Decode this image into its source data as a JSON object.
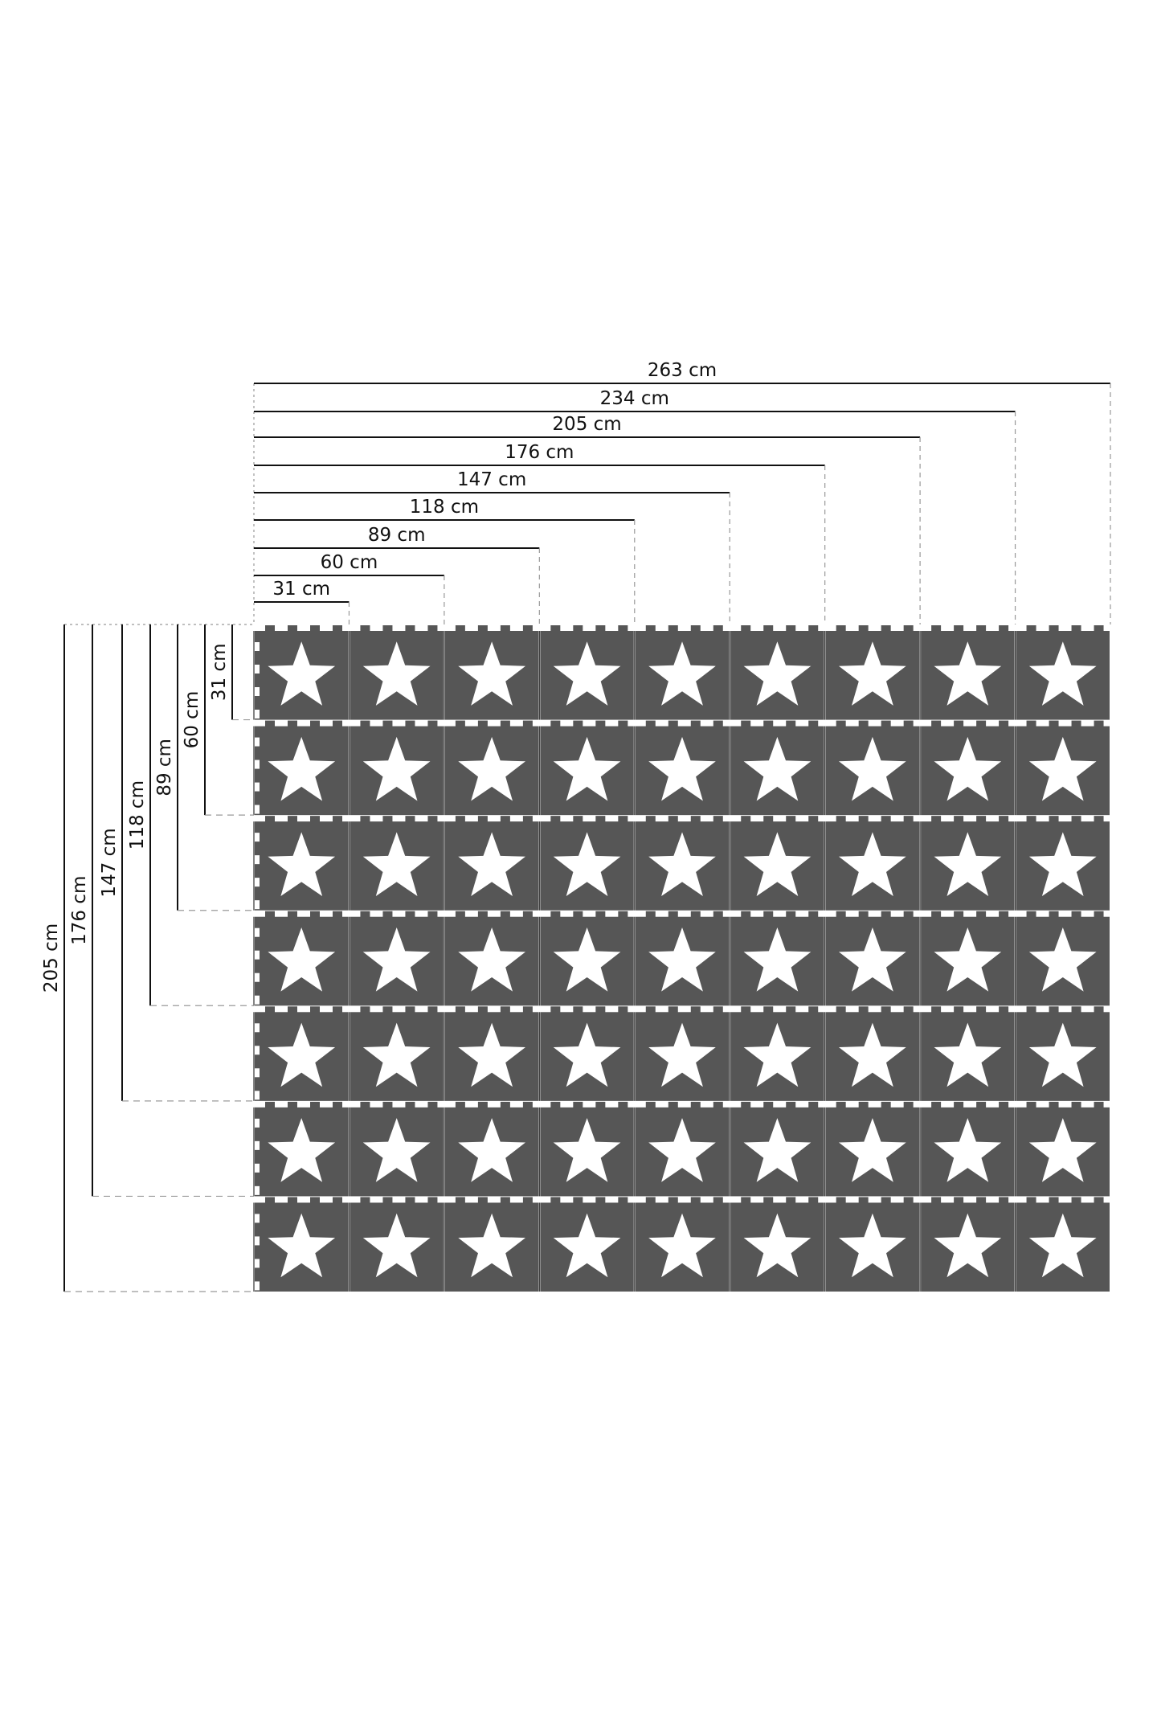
{
  "colors": {
    "tile": "#565656",
    "star": "#ffffff",
    "line": "#111111",
    "guide": "#999999"
  },
  "mat": {
    "columns": 9,
    "rows": 7,
    "icon": "star-icon"
  },
  "width_dimensions": [
    "31 cm",
    "60 cm",
    "89 cm",
    "118 cm",
    "147 cm",
    "176 cm",
    "205 cm",
    "234 cm",
    "263 cm"
  ],
  "height_dimensions": [
    "31 cm",
    "60 cm",
    "89 cm",
    "118 cm",
    "147 cm",
    "176 cm",
    "205 cm"
  ]
}
